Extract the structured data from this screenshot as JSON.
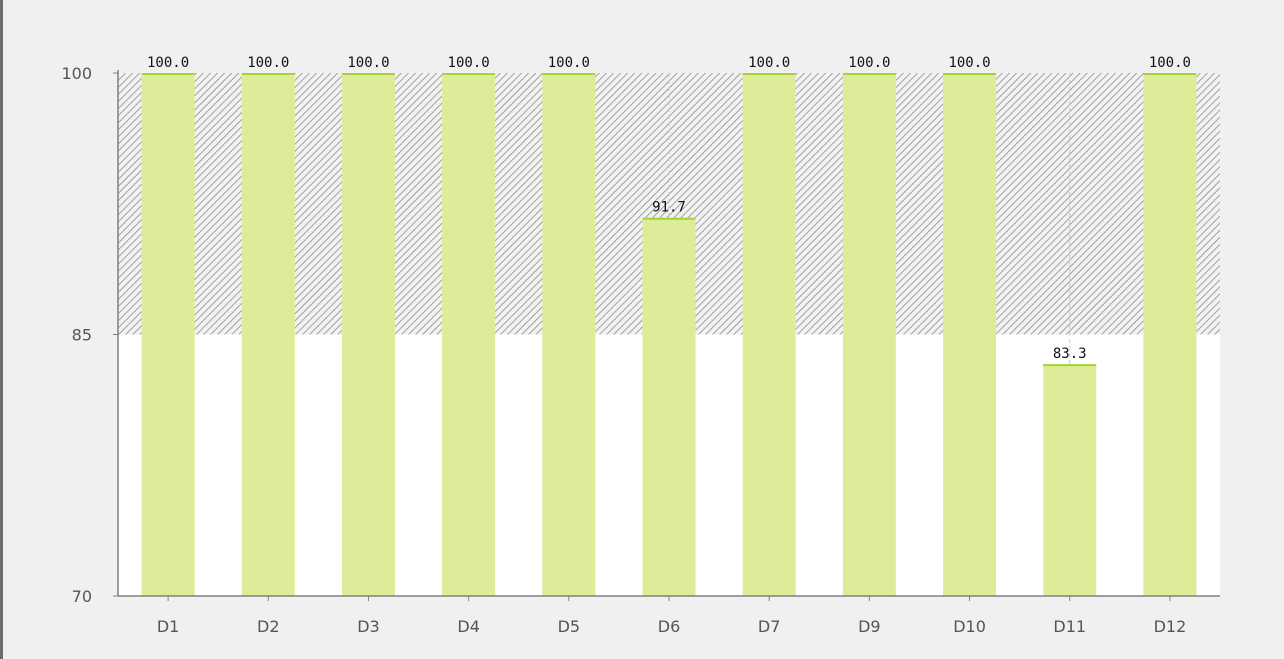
{
  "chart_data": {
    "type": "bar",
    "title": "",
    "xlabel": "",
    "ylabel": "",
    "categories": [
      "D1",
      "D2",
      "D3",
      "D4",
      "D5",
      "D6",
      "D7",
      "D9",
      "D10",
      "D11",
      "D12"
    ],
    "values": [
      100.0,
      100.0,
      100.0,
      100.0,
      100.0,
      91.7,
      100.0,
      100.0,
      100.0,
      83.3,
      100.0
    ],
    "value_labels": [
      "100.0",
      "100.0",
      "100.0",
      "100.0",
      "100.0",
      "91.7",
      "100.0",
      "100.0",
      "100.0",
      "83.3",
      "100.0"
    ],
    "ylim": [
      70,
      100
    ],
    "yticks": [
      "70",
      "85",
      "100"
    ],
    "threshold_band": {
      "from": 85,
      "to": 100,
      "style": "diagonal-hatch"
    },
    "grid": false,
    "colors": {
      "bar_fill": "#dcec98",
      "bar_edge": "#a8d23a",
      "plot_background": "#ffffff",
      "band_hatch": "#8c8c8c",
      "axis": "#808080"
    }
  }
}
